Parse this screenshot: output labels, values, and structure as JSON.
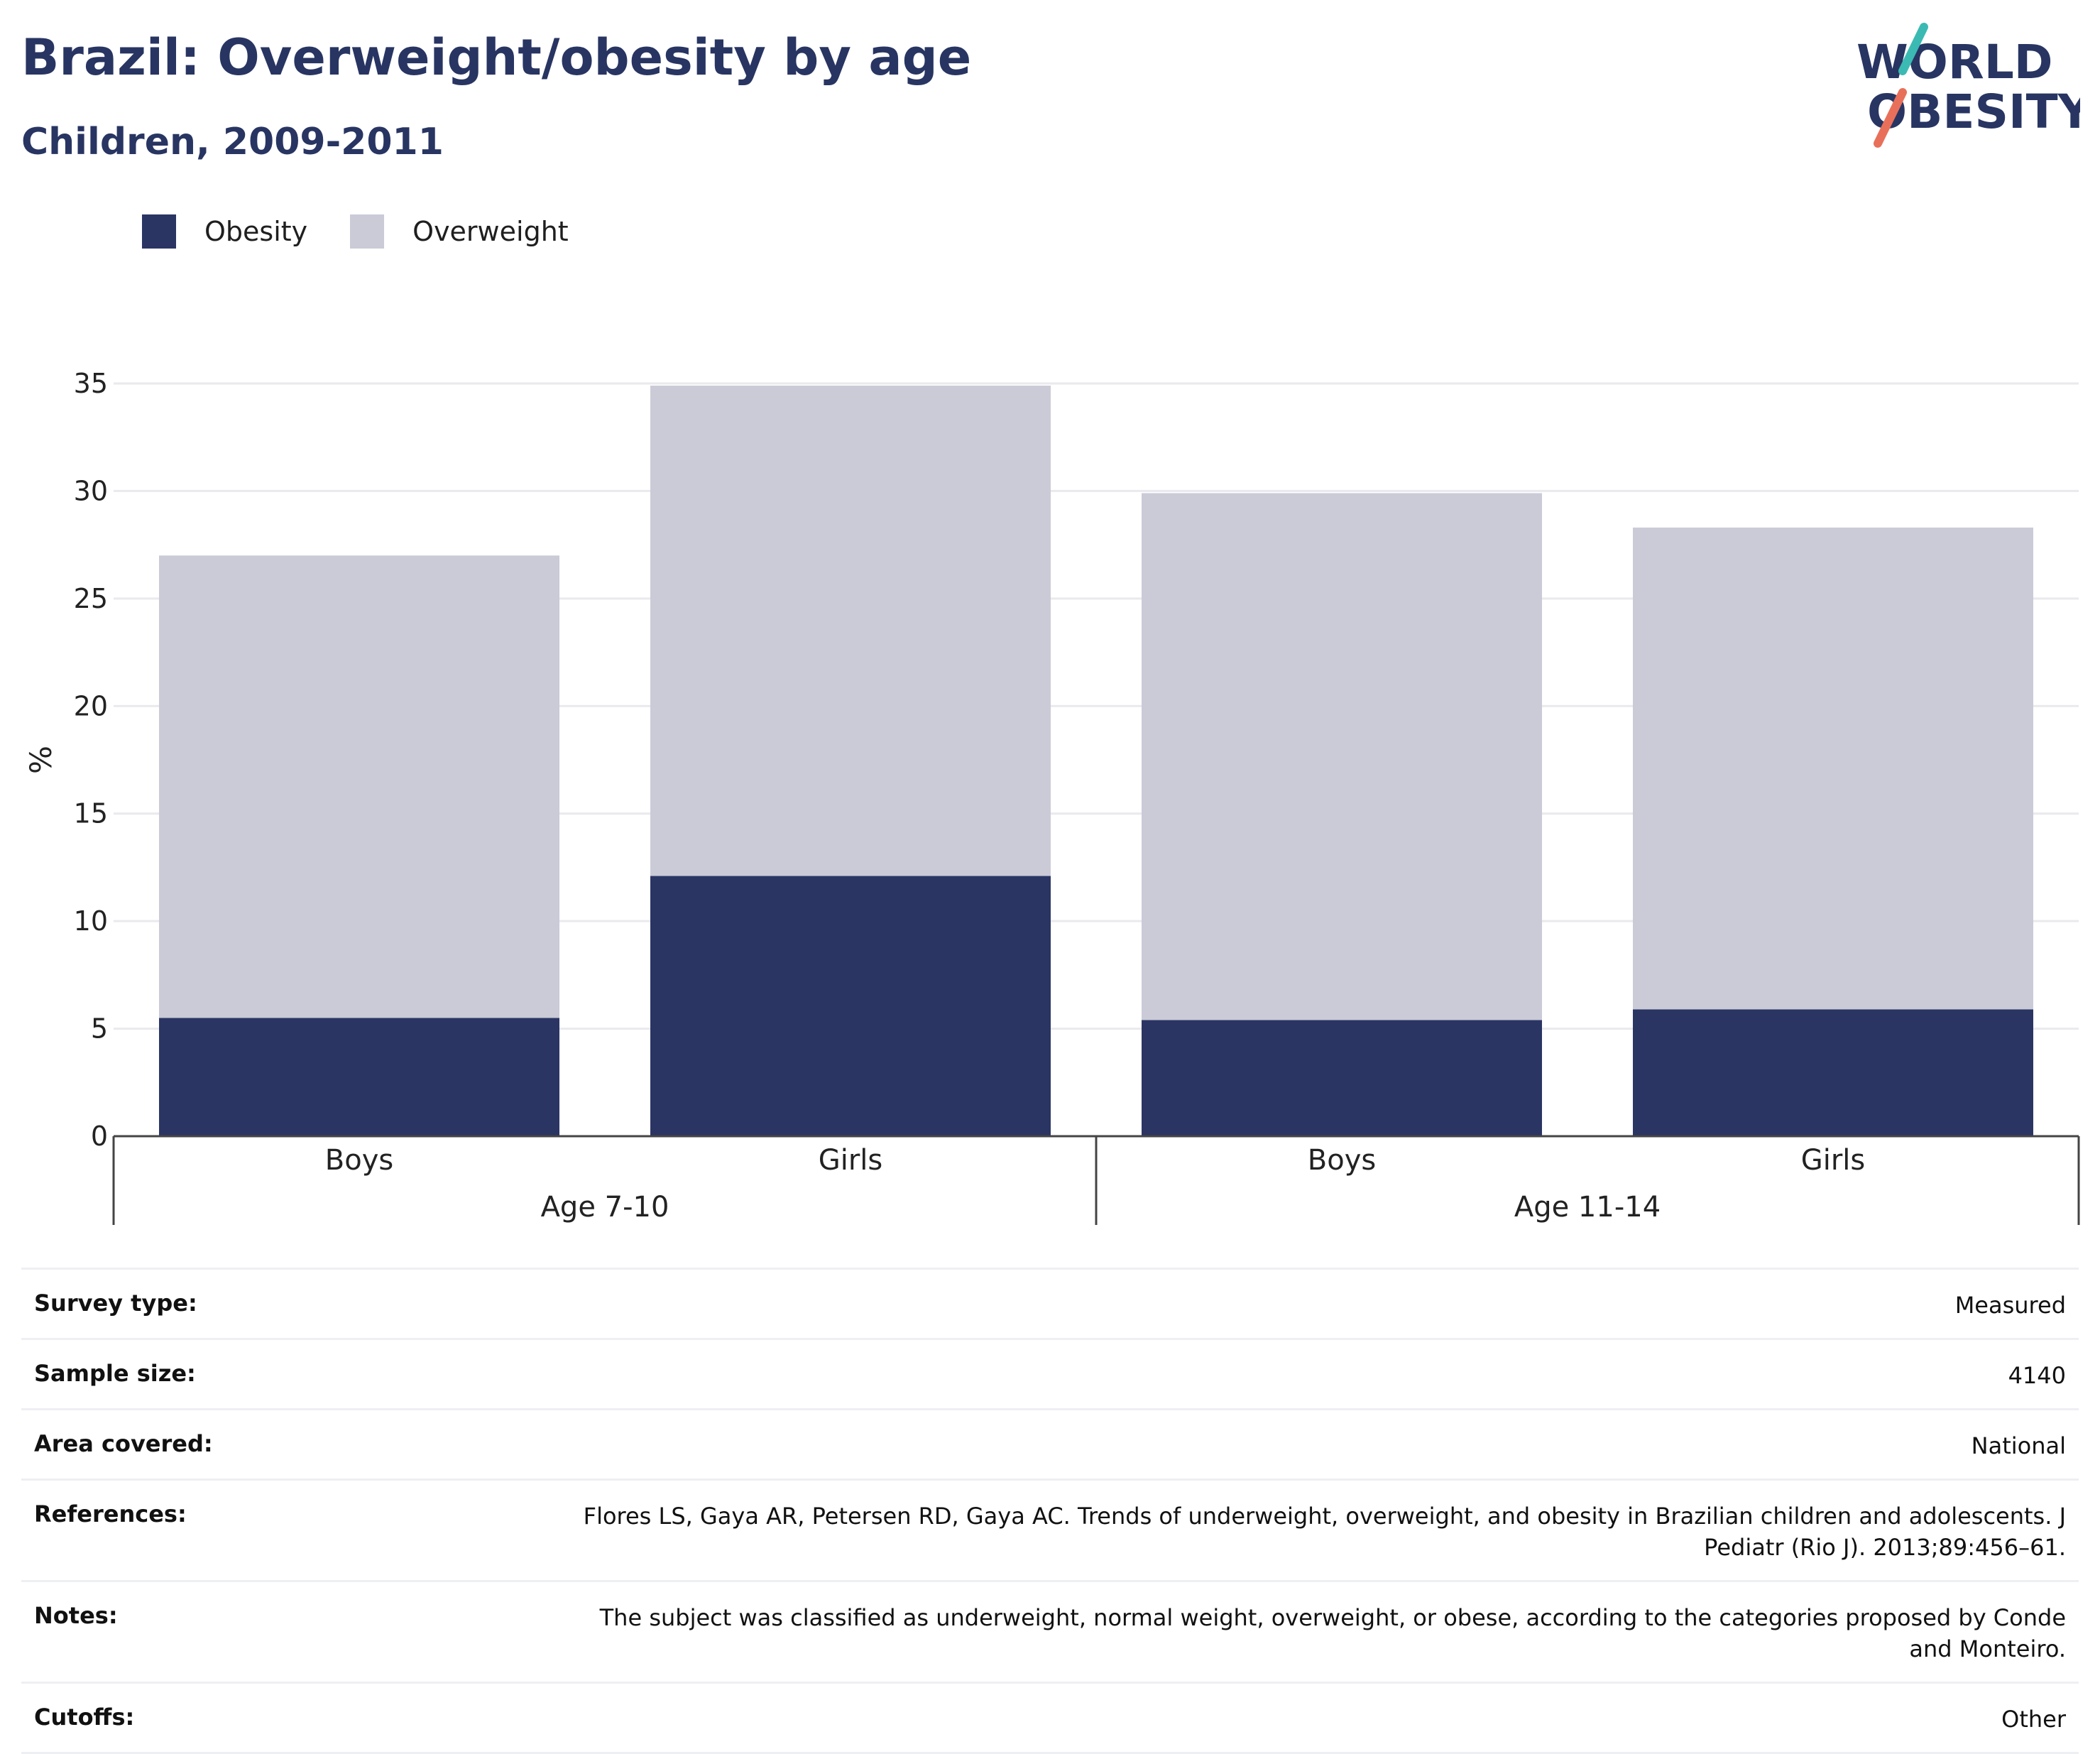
{
  "header": {
    "title": "Brazil: Overweight/obesity by age",
    "subtitle": "Children, 2009-2011"
  },
  "logo": {
    "line1": "WORLD",
    "line2": "OBESITY"
  },
  "colors": {
    "obesity": "#2a3564",
    "overweight": "#cacbd7",
    "grid": "#e9e9ee",
    "axis": "#444444"
  },
  "legend": [
    {
      "label": "Obesity",
      "color": "#2a3564"
    },
    {
      "label": "Overweight",
      "color": "#cacbd7"
    }
  ],
  "chart_data": {
    "type": "bar",
    "stacked": true,
    "ylabel": "%",
    "ylim": [
      0,
      35
    ],
    "yticks": [
      0,
      5,
      10,
      15,
      20,
      25,
      30,
      35
    ],
    "grid": true,
    "legend_position": "top-left",
    "groups": [
      {
        "label": "Age 7-10",
        "categories": [
          "Boys",
          "Girls"
        ]
      },
      {
        "label": "Age 11-14",
        "categories": [
          "Boys",
          "Girls"
        ]
      }
    ],
    "categories": [
      "Boys",
      "Girls",
      "Boys",
      "Girls"
    ],
    "series": [
      {
        "name": "Obesity",
        "values": [
          5.5,
          12.1,
          5.4,
          5.9
        ]
      },
      {
        "name": "Overweight",
        "values": [
          21.5,
          22.8,
          24.5,
          22.4
        ]
      }
    ]
  },
  "meta": [
    {
      "label": "Survey type:",
      "value": "Measured"
    },
    {
      "label": "Sample size:",
      "value": "4140"
    },
    {
      "label": "Area covered:",
      "value": "National"
    },
    {
      "label": "References:",
      "value": "Flores LS, Gaya AR, Petersen RD, Gaya AC. Trends of underweight, overweight, and obesity in Brazilian children and adolescents. J Pediatr (Rio J). 2013;89:456–61."
    },
    {
      "label": "Notes:",
      "value": "The subject was classified as underweight, normal weight, overweight, or obese, according to the categories proposed by Conde and Monteiro."
    },
    {
      "label": "Cutoffs:",
      "value": "Other"
    }
  ]
}
